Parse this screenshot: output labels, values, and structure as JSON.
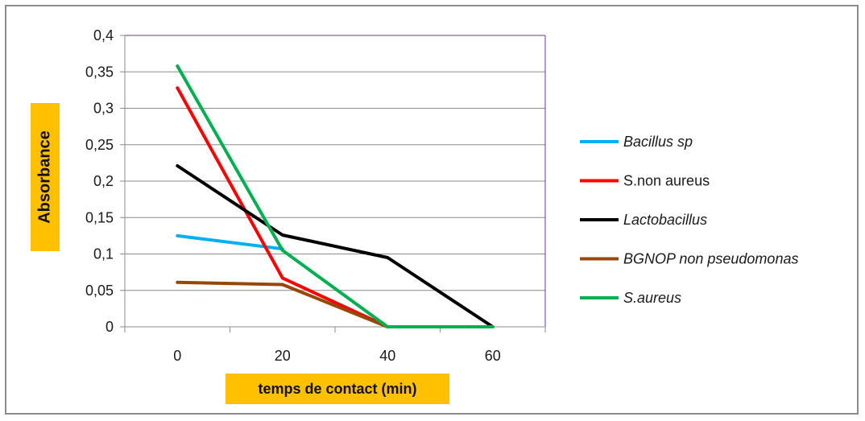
{
  "chart_data": {
    "type": "line",
    "xlabel": "temps de contact (min)",
    "ylabel": "Absorbance",
    "x": [
      0,
      20,
      40,
      60
    ],
    "x_ticks": [
      "0",
      "20",
      "40",
      "60"
    ],
    "ylim": [
      0,
      0.4
    ],
    "y_ticks": [
      "0",
      "0,05",
      "0,1",
      "0,15",
      "0,2",
      "0,25",
      "0,3",
      "0,35",
      "0,4"
    ],
    "grid": true,
    "legend_position": "right",
    "series": [
      {
        "name": "Bacillus sp",
        "color": "#00b0f0",
        "italic": true,
        "x": [
          0,
          20
        ],
        "values": [
          0.125,
          0.107
        ]
      },
      {
        "name": "S.non aureus",
        "color": "#ff0000",
        "italic": false,
        "x": [
          0,
          20,
          40
        ],
        "values": [
          0.328,
          0.067,
          0.0
        ]
      },
      {
        "name": "Lactobacillus",
        "color": "#000000",
        "italic": true,
        "x": [
          0,
          20,
          40,
          60
        ],
        "values": [
          0.221,
          0.126,
          0.095,
          0.0
        ]
      },
      {
        "name": "BGNOP non pseudomonas",
        "color": "#974706",
        "italic": true,
        "x": [
          0,
          20,
          40
        ],
        "values": [
          0.061,
          0.058,
          0.0
        ]
      },
      {
        "name": "S.aureus",
        "color": "#00b050",
        "italic": true,
        "x": [
          0,
          20,
          40,
          60
        ],
        "values": [
          0.358,
          0.105,
          0.0,
          0.0
        ]
      }
    ]
  }
}
